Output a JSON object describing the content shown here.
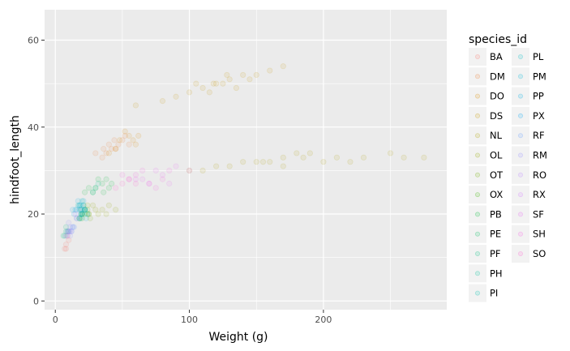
{
  "chart_data": {
    "type": "scatter",
    "xlabel": "Weight (g)",
    "ylabel": "hindfoot_length",
    "xlim": [
      -8,
      292
    ],
    "ylim": [
      -2,
      67
    ],
    "xticks": [
      0,
      100,
      200
    ],
    "yticks": [
      0,
      20,
      40,
      60
    ],
    "x_tick_labels": [
      "0",
      "100",
      "200"
    ],
    "y_tick_labels": [
      "0",
      "20",
      "40",
      "60"
    ],
    "grid": true,
    "legend_position": "right",
    "legend_title": "species_id",
    "point_alpha": 0.1,
    "series": [
      {
        "name": "BA",
        "color": "#F8766D",
        "points": [
          [
            8,
            13
          ],
          [
            9,
            15
          ],
          [
            7,
            12
          ],
          [
            10,
            14
          ],
          [
            8,
            12
          ]
        ]
      },
      {
        "name": "DM",
        "color": "#EC8239",
        "points": [
          [
            45,
            35
          ],
          [
            40,
            36
          ],
          [
            50,
            37
          ],
          [
            38,
            34
          ],
          [
            42,
            35
          ],
          [
            47,
            36
          ],
          [
            35,
            33
          ],
          [
            52,
            38
          ],
          [
            44,
            37
          ],
          [
            30,
            34
          ],
          [
            55,
            36
          ],
          [
            36,
            35
          ]
        ]
      },
      {
        "name": "DO",
        "color": "#DB8E00",
        "points": [
          [
            48,
            37
          ],
          [
            55,
            38
          ],
          [
            60,
            36
          ],
          [
            45,
            35
          ],
          [
            52,
            39
          ],
          [
            58,
            37
          ],
          [
            40,
            34
          ],
          [
            62,
            38
          ]
        ]
      },
      {
        "name": "DS",
        "color": "#C79800",
        "points": [
          [
            120,
            50
          ],
          [
            110,
            49
          ],
          [
            130,
            51
          ],
          [
            140,
            52
          ],
          [
            100,
            48
          ],
          [
            125,
            50
          ],
          [
            150,
            52
          ],
          [
            90,
            47
          ],
          [
            135,
            49
          ],
          [
            115,
            48
          ],
          [
            160,
            53
          ],
          [
            80,
            46
          ],
          [
            145,
            51
          ],
          [
            105,
            50
          ],
          [
            170,
            54
          ],
          [
            60,
            45
          ],
          [
            128,
            52
          ],
          [
            118,
            50
          ]
        ]
      },
      {
        "name": "NL",
        "color": "#AFA100",
        "points": [
          [
            150,
            32
          ],
          [
            170,
            33
          ],
          [
            130,
            31
          ],
          [
            190,
            34
          ],
          [
            110,
            30
          ],
          [
            210,
            33
          ],
          [
            160,
            32
          ],
          [
            230,
            33
          ],
          [
            180,
            34
          ],
          [
            140,
            32
          ],
          [
            200,
            32
          ],
          [
            250,
            34
          ],
          [
            120,
            31
          ],
          [
            170,
            31
          ],
          [
            260,
            33
          ],
          [
            100,
            30
          ],
          [
            185,
            33
          ],
          [
            220,
            32
          ],
          [
            275,
            33
          ],
          [
            155,
            32
          ]
        ]
      },
      {
        "name": "OL",
        "color": "#94AA00",
        "points": [
          [
            30,
            21
          ],
          [
            35,
            21
          ],
          [
            25,
            20
          ],
          [
            40,
            22
          ],
          [
            32,
            20
          ],
          [
            28,
            22
          ],
          [
            45,
            21
          ],
          [
            20,
            20
          ],
          [
            38,
            20
          ]
        ]
      },
      {
        "name": "OT",
        "color": "#72B000",
        "points": [
          [
            20,
            20
          ],
          [
            22,
            21
          ],
          [
            18,
            19
          ],
          [
            25,
            20
          ],
          [
            24,
            22
          ],
          [
            19,
            21
          ],
          [
            26,
            19
          ]
        ]
      },
      {
        "name": "OX",
        "color": "#3BB700",
        "points": [
          [
            22,
            20
          ],
          [
            20,
            19
          ],
          [
            24,
            21
          ]
        ]
      },
      {
        "name": "PB",
        "color": "#00BA38",
        "points": [
          [
            30,
            26
          ],
          [
            35,
            27
          ],
          [
            28,
            25
          ],
          [
            40,
            26
          ],
          [
            32,
            28
          ],
          [
            25,
            26
          ],
          [
            42,
            27
          ],
          [
            36,
            25
          ],
          [
            38,
            28
          ],
          [
            22,
            25
          ]
        ]
      },
      {
        "name": "PE",
        "color": "#00BD5F",
        "points": [
          [
            20,
            20
          ],
          [
            22,
            21
          ],
          [
            18,
            19
          ],
          [
            24,
            20
          ],
          [
            21,
            22
          ],
          [
            19,
            20
          ]
        ]
      },
      {
        "name": "PF",
        "color": "#00BF7D",
        "points": [
          [
            8,
            16
          ],
          [
            7,
            15
          ],
          [
            9,
            16
          ],
          [
            8,
            17
          ],
          [
            6,
            15
          ],
          [
            10,
            16
          ]
        ]
      },
      {
        "name": "PH",
        "color": "#00C097",
        "points": [
          [
            30,
            26
          ],
          [
            32,
            27
          ],
          [
            28,
            25
          ]
        ]
      },
      {
        "name": "PI",
        "color": "#00C0AF",
        "points": [
          [
            18,
            22
          ],
          [
            20,
            23
          ],
          [
            17,
            22
          ]
        ]
      },
      {
        "name": "PL",
        "color": "#00BDC4",
        "points": [
          [
            20,
            20
          ],
          [
            22,
            21
          ],
          [
            19,
            19
          ]
        ]
      },
      {
        "name": "PM",
        "color": "#00B8D6",
        "points": [
          [
            20,
            20
          ],
          [
            22,
            21
          ],
          [
            18,
            19
          ],
          [
            24,
            20
          ],
          [
            21,
            22
          ],
          [
            19,
            21
          ],
          [
            23,
            19
          ]
        ]
      },
      {
        "name": "PP",
        "color": "#00B1E6",
        "points": [
          [
            16,
            21
          ],
          [
            18,
            22
          ],
          [
            15,
            21
          ],
          [
            20,
            21
          ],
          [
            17,
            23
          ],
          [
            14,
            20
          ],
          [
            19,
            22
          ],
          [
            22,
            21
          ],
          [
            13,
            21
          ],
          [
            21,
            23
          ],
          [
            16,
            19
          ]
        ]
      },
      {
        "name": "PX",
        "color": "#00A7F4",
        "points": [
          [
            18,
            21
          ],
          [
            19,
            20
          ]
        ]
      },
      {
        "name": "RF",
        "color": "#619CFF",
        "points": [
          [
            13,
            17
          ],
          [
            12,
            16
          ],
          [
            14,
            17
          ]
        ]
      },
      {
        "name": "RM",
        "color": "#9590FF",
        "points": [
          [
            10,
            16
          ],
          [
            11,
            17
          ],
          [
            9,
            16
          ],
          [
            12,
            16
          ],
          [
            10,
            18
          ],
          [
            8,
            15
          ],
          [
            11,
            15
          ],
          [
            13,
            17
          ]
        ]
      },
      {
        "name": "RO",
        "color": "#B983FF",
        "points": [
          [
            10,
            16
          ],
          [
            11,
            16
          ],
          [
            9,
            15
          ]
        ]
      },
      {
        "name": "RX",
        "color": "#D376FF",
        "points": [
          [
            15,
            20
          ],
          [
            16,
            19
          ]
        ]
      },
      {
        "name": "SF",
        "color": "#E76BF3",
        "points": [
          [
            60,
            28
          ],
          [
            70,
            27
          ],
          [
            80,
            29
          ],
          [
            75,
            30
          ],
          [
            90,
            31
          ],
          [
            65,
            28
          ],
          [
            100,
            30
          ],
          [
            85,
            27
          ]
        ]
      },
      {
        "name": "SH",
        "color": "#F564E3",
        "points": [
          [
            60,
            29
          ],
          [
            65,
            30
          ],
          [
            70,
            27
          ],
          [
            55,
            28
          ],
          [
            80,
            28
          ],
          [
            75,
            26
          ],
          [
            50,
            29
          ],
          [
            85,
            30
          ]
        ]
      },
      {
        "name": "SO",
        "color": "#FD61D1",
        "points": [
          [
            50,
            27
          ],
          [
            55,
            28
          ],
          [
            60,
            27
          ],
          [
            45,
            26
          ]
        ]
      }
    ]
  }
}
